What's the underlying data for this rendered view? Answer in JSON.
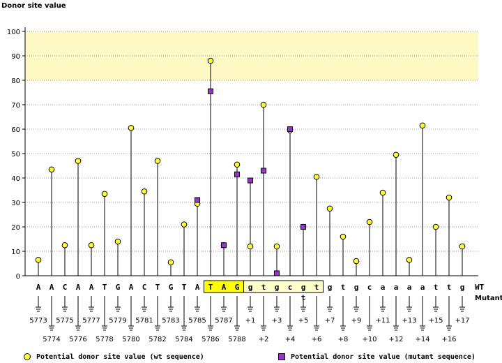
{
  "chart_data": {
    "type": "scatter",
    "ylabel": "Donor site value",
    "ylim": [
      0,
      100
    ],
    "yticks": [
      0,
      10,
      20,
      30,
      40,
      50,
      60,
      70,
      80,
      90,
      100
    ],
    "highlight_band": {
      "from": 80,
      "to": 100,
      "color": "#fff9c4"
    },
    "positions": [
      "5773",
      "5774",
      "5775",
      "5776",
      "5777",
      "5778",
      "5779",
      "5780",
      "5781",
      "5782",
      "5783",
      "5784",
      "5785",
      "5786",
      "5787",
      "5788",
      "+1",
      "+2",
      "+3",
      "+4",
      "+5",
      "+6",
      "+7",
      "+8",
      "+9",
      "+10",
      "+11",
      "+12",
      "+13",
      "+14",
      "+15",
      "+16",
      "+17"
    ],
    "wt_sequence": [
      "A",
      "A",
      "C",
      "A",
      "A",
      "T",
      "G",
      "A",
      "C",
      "T",
      "G",
      "T",
      "A",
      "T",
      "A",
      "G",
      "g",
      "t",
      "g",
      "c",
      "g",
      "t",
      "g",
      "t",
      "g",
      "c",
      "a",
      "a",
      "a",
      "a",
      "t",
      "t",
      "g"
    ],
    "mutant_sequence": [
      "",
      "",
      "",
      "",
      "",
      "",
      "",
      "",
      "",
      "",
      "",
      "",
      "",
      "",
      "",
      "",
      "",
      "",
      "",
      "",
      "t",
      "",
      "",
      "",
      "",
      "",
      "",
      "",
      "",
      "",
      "",
      "",
      ""
    ],
    "exon_highlight_indices": [
      13,
      14,
      15
    ],
    "intron_box_indices": [
      16,
      17,
      18,
      19,
      20,
      21
    ],
    "row_labels": {
      "wt": "WT",
      "mutant": "Mutant"
    },
    "series": [
      {
        "name": "Potential donor site value (wt sequence)",
        "marker": "circle",
        "color": "#ffff33",
        "values": [
          6.5,
          43.5,
          12.5,
          47,
          12.5,
          33.5,
          14,
          60.5,
          34.5,
          47,
          5.5,
          21,
          29.5,
          88,
          12.5,
          45.5,
          12,
          70,
          12,
          59.5,
          20,
          40.5,
          27.5,
          16,
          6,
          22,
          34,
          49.5,
          6.5,
          61.5,
          20,
          32,
          12
        ]
      },
      {
        "name": "Potential donor site value (mutant sequence)",
        "marker": "square",
        "color": "#9933cc",
        "values": [
          null,
          null,
          null,
          null,
          null,
          null,
          null,
          null,
          null,
          null,
          null,
          null,
          31,
          75.5,
          12.5,
          41.5,
          39,
          43,
          1,
          60,
          20,
          null,
          null,
          null,
          null,
          null,
          null,
          null,
          null,
          null,
          null,
          null,
          null
        ]
      }
    ]
  },
  "legend": {
    "wt": "Potential donor site value (wt sequence)",
    "mutant": "Potential donor site value (mutant sequence)"
  },
  "colors": {
    "mutant_label": "#1e2bd6",
    "exon_fill": "#ffff00",
    "intron_fill": "#ffffcc"
  }
}
